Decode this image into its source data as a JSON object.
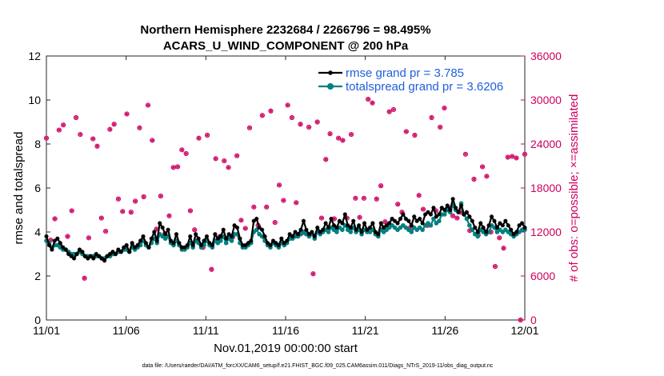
{
  "chart_data": {
    "type": "line",
    "title": "Northern Hemisphere 2232684 / 2266796 = 98.495%",
    "subtitle": "ACARS_U_WIND_COMPONENT @ 200 hPa",
    "xlabel": "Nov.01,2019 00:00:00 start",
    "ylabel": "rmse and totalspread",
    "ylabel_right": "# of obs: o=possible; ×=assimilated",
    "footnote": "data file: /Users/raeder/DAI/ATM_forcXX/CAM6_setup/f.e21.FHIST_BGC.f09_025.CAM6assim.011/Diags_NTrS_2019-11/obs_diag_output.nc",
    "x_ticks": [
      "11/01",
      "11/06",
      "11/11",
      "11/16",
      "11/21",
      "11/26",
      "12/01"
    ],
    "y_ticks": [
      "0",
      "2",
      "4",
      "6",
      "8",
      "10",
      "12"
    ],
    "y2_ticks": [
      "0",
      "6000",
      "12000",
      "18000",
      "24000",
      "30000",
      "36000"
    ],
    "xlim": [
      0,
      30
    ],
    "ylim": [
      0,
      12
    ],
    "y2lim": [
      0,
      36000
    ],
    "series": [
      {
        "name": "rmse grand pr = 3.785",
        "color": "#000000",
        "marker": "star",
        "values": [
          3.8,
          3.4,
          3.2,
          3.6,
          3.7,
          3.5,
          3.3,
          3.2,
          3.0,
          2.9,
          2.8,
          3.0,
          3.2,
          3.1,
          2.9,
          2.8,
          2.9,
          2.8,
          3.0,
          2.9,
          2.8,
          2.7,
          2.9,
          3.0,
          3.1,
          3.0,
          3.2,
          3.1,
          3.3,
          3.4,
          3.1,
          3.5,
          3.3,
          3.4,
          3.6,
          3.8,
          3.5,
          3.3,
          3.7,
          4.0,
          3.6,
          4.4,
          4.2,
          3.9,
          4.1,
          3.6,
          3.5,
          3.9,
          3.5,
          3.3,
          3.3,
          3.4,
          3.8,
          3.4,
          3.9,
          3.7,
          3.4,
          3.6,
          3.8,
          3.5,
          3.4,
          3.9,
          3.7,
          3.8,
          4.1,
          3.7,
          3.9,
          3.8,
          4.3,
          4.2,
          3.7,
          3.4,
          3.4,
          3.5,
          3.6,
          4.5,
          4.6,
          4.2,
          4.1,
          3.8,
          3.5,
          3.4,
          3.6,
          3.5,
          3.4,
          3.7,
          3.5,
          3.6,
          3.9,
          3.8,
          4.0,
          3.9,
          4.1,
          4.5,
          4.1,
          3.9,
          4.0,
          3.8,
          4.2,
          4.0,
          4.1,
          4.4,
          4.2,
          4.6,
          4.3,
          4.2,
          4.5,
          4.4,
          4.8,
          4.3,
          4.2,
          4.5,
          4.1,
          4.3,
          4.0,
          4.4,
          4.1,
          4.2,
          4.4,
          4.0,
          3.9,
          4.4,
          4.2,
          4.3,
          4.4,
          4.6,
          4.5,
          4.4,
          4.6,
          4.8,
          4.6,
          4.5,
          4.3,
          4.7,
          4.5,
          4.6,
          4.4,
          4.8,
          4.9,
          4.8,
          5.1,
          4.7,
          4.8,
          5.1,
          5.0,
          5.2,
          5.0,
          5.5,
          5.1,
          4.9,
          5.2,
          4.8,
          4.9,
          4.7,
          4.5,
          4.2,
          4.0,
          4.4,
          4.2,
          4.0,
          4.3,
          4.7,
          4.5,
          4.2,
          4.4,
          4.3,
          4.5,
          4.3,
          4.1,
          3.9,
          4.0,
          4.3,
          4.4,
          4.2
        ]
      },
      {
        "name": "totalspread grand pr = 3.6206",
        "color": "#008080",
        "marker": "circle",
        "values": [
          3.6,
          3.5,
          3.3,
          3.4,
          3.4,
          3.3,
          3.2,
          3.2,
          3.1,
          3.0,
          3.0,
          3.0,
          3.1,
          3.0,
          2.9,
          2.9,
          2.9,
          2.9,
          2.9,
          2.9,
          2.8,
          2.8,
          2.9,
          2.9,
          3.0,
          3.0,
          3.1,
          3.1,
          3.2,
          3.2,
          3.1,
          3.3,
          3.2,
          3.3,
          3.4,
          3.6,
          3.4,
          3.3,
          3.5,
          3.7,
          3.5,
          3.9,
          3.8,
          3.7,
          3.8,
          3.5,
          3.4,
          3.6,
          3.4,
          3.2,
          3.2,
          3.3,
          3.5,
          3.3,
          3.6,
          3.5,
          3.3,
          3.4,
          3.6,
          3.4,
          3.3,
          3.6,
          3.5,
          3.6,
          3.8,
          3.5,
          3.7,
          3.6,
          3.9,
          3.9,
          3.5,
          3.3,
          3.3,
          3.4,
          3.5,
          4.0,
          4.1,
          3.9,
          3.8,
          3.6,
          3.4,
          3.3,
          3.5,
          3.4,
          3.3,
          3.5,
          3.4,
          3.5,
          3.7,
          3.7,
          3.8,
          3.8,
          3.9,
          4.0,
          3.9,
          3.8,
          3.9,
          3.7,
          4.0,
          3.9,
          4.0,
          4.1,
          4.0,
          4.2,
          4.1,
          4.0,
          4.2,
          4.1,
          4.3,
          4.1,
          4.0,
          4.2,
          4.0,
          4.1,
          3.9,
          4.1,
          4.0,
          4.0,
          4.1,
          3.9,
          3.8,
          4.1,
          4.0,
          4.1,
          4.2,
          4.3,
          4.2,
          4.1,
          4.2,
          4.3,
          4.2,
          4.1,
          4.0,
          4.2,
          4.1,
          4.2,
          4.1,
          4.3,
          4.4,
          4.3,
          4.6,
          4.4,
          4.5,
          4.8,
          4.8,
          5.0,
          4.9,
          5.2,
          5.0,
          4.9,
          5.3,
          4.8,
          4.6,
          4.3,
          4.1,
          3.9,
          3.8,
          4.1,
          4.0,
          3.9,
          4.0,
          4.3,
          4.2,
          4.0,
          4.1,
          4.0,
          4.1,
          4.0,
          3.9,
          3.8,
          3.9,
          4.0,
          4.1,
          4.1
        ]
      },
      {
        "name": "# of obs possible",
        "axis": "right",
        "color": "#cc0060",
        "marker": "open-circle",
        "values": [
          24800,
          10900,
          13800,
          25900,
          26600,
          11400,
          14900,
          27600,
          25300,
          5700,
          11200,
          24700,
          23700,
          13900,
          12100,
          26000,
          26700,
          16500,
          14800,
          28100,
          14700,
          16200,
          26200,
          16800,
          29300,
          24500,
          12400,
          16900,
          11800,
          14200,
          20800,
          20900,
          23200,
          22700,
          14900,
          12300,
          24800,
          9900,
          25200,
          6900,
          22000,
          11400,
          21700,
          20800,
          11300,
          22400,
          13600,
          12500,
          26200,
          15400,
          12900,
          27900,
          15400,
          28500,
          13300,
          18400,
          16300,
          29300,
          27600,
          16000,
          26700,
          11900,
          26300,
          6300,
          27000,
          13900,
          21900,
          25400,
          13800,
          24800,
          24500,
          13900,
          25300,
          16600,
          14000,
          16600,
          30100,
          29600,
          16500,
          18300,
          13400,
          28400,
          28700,
          15800,
          14700,
          25700,
          12600,
          25200,
          17000,
          15100,
          12900,
          27600,
          14900,
          26300,
          28900,
          15300,
          14200,
          13900,
          14700,
          22600,
          12200,
          19200,
          11600,
          20900,
          19600,
          12000,
          7300,
          11200,
          9800,
          22200,
          22300,
          22100,
          0,
          22600
        ]
      }
    ]
  }
}
